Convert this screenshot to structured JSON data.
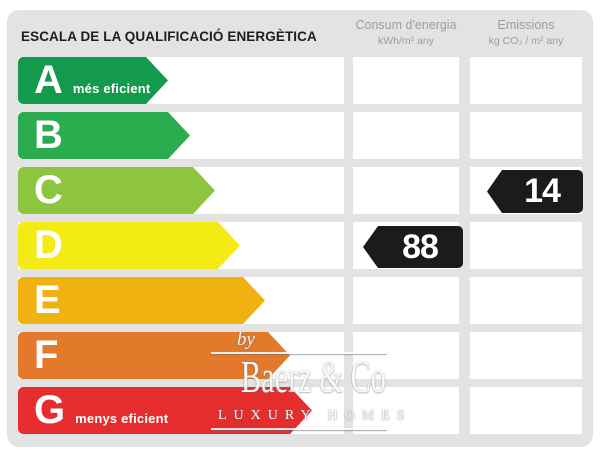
{
  "header": {
    "title": "ESCALA DE LA QUALIFICACIÓ ENERGÈTICA",
    "columns": [
      {
        "line1": "Consum d'energia",
        "line2": "kWh/m² any"
      },
      {
        "line1": "Emissions",
        "line2": "kg CO₂ / m² any"
      }
    ]
  },
  "scale": {
    "rows": [
      {
        "letter": "A",
        "note": "més eficient",
        "color": "#149A4D"
      },
      {
        "letter": "B",
        "note": "",
        "color": "#2BAD4F"
      },
      {
        "letter": "C",
        "note": "",
        "color": "#8DC53F"
      },
      {
        "letter": "D",
        "note": "",
        "color": "#F4EB15"
      },
      {
        "letter": "E",
        "note": "",
        "color": "#EFB211"
      },
      {
        "letter": "F",
        "note": "",
        "color": "#E3792A"
      },
      {
        "letter": "G",
        "note": "menys eficient",
        "color": "#E52D2E"
      }
    ]
  },
  "values": {
    "consum": {
      "value": "88",
      "rating": "D",
      "color": "#1B1B1B"
    },
    "emissions": {
      "value": "14",
      "rating": "C",
      "color": "#1B1B1B"
    }
  },
  "watermark": {
    "by": "by",
    "name": "Baerz & Co",
    "tagline": "LUXURY HOMES"
  },
  "chart_data": {
    "type": "bar",
    "title": "ESCALA DE LA QUALIFICACIÓ ENERGÈTICA",
    "categories": [
      "A",
      "B",
      "C",
      "D",
      "E",
      "F",
      "G"
    ],
    "category_labels": [
      "A més eficient",
      "B",
      "C",
      "D",
      "E",
      "F",
      "G menys eficient"
    ],
    "bar_colors": [
      "#149A4D",
      "#2BAD4F",
      "#8DC53F",
      "#F4EB15",
      "#EFB211",
      "#E3792A",
      "#E52D2E"
    ],
    "bar_relative_lengths": [
      150,
      172,
      197,
      222,
      247,
      272,
      294
    ],
    "series": [
      {
        "name": "Consum d'energia (kWh/m² any)",
        "annotations": [
          {
            "category": "D",
            "value": 88
          }
        ]
      },
      {
        "name": "Emissions (kg CO₂ / m² any)",
        "annotations": [
          {
            "category": "C",
            "value": 14
          }
        ]
      }
    ],
    "legend_position": "top",
    "grid": false
  }
}
